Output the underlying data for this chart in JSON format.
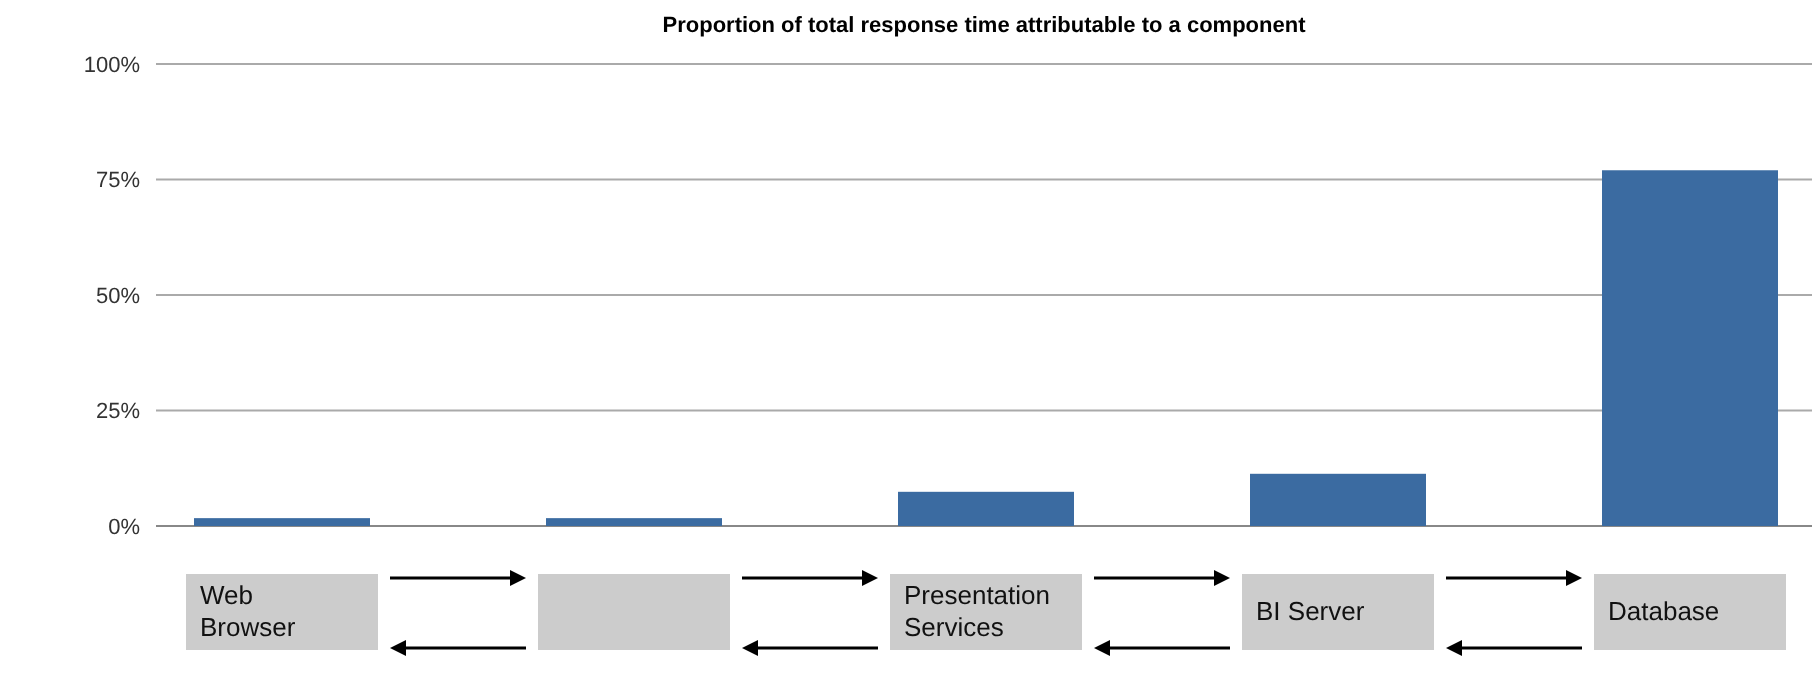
{
  "chart_data": {
    "type": "bar",
    "title": "Proportion of total response time attributable to a component",
    "categories": [
      "Web Browser",
      null,
      "Presentation Services",
      "BI Server",
      "Database"
    ],
    "values": [
      1.7,
      1.7,
      7.4,
      11.3,
      77
    ],
    "color": "#3b6ba1",
    "ylim": [
      0,
      100
    ],
    "yticks": [
      {
        "value": 0,
        "label": "0%"
      },
      {
        "value": 25,
        "label": "25%"
      },
      {
        "value": 50,
        "label": "50%"
      },
      {
        "value": 75,
        "label": "75%"
      },
      {
        "value": 100,
        "label": "100%"
      }
    ],
    "grid": "y"
  }
}
